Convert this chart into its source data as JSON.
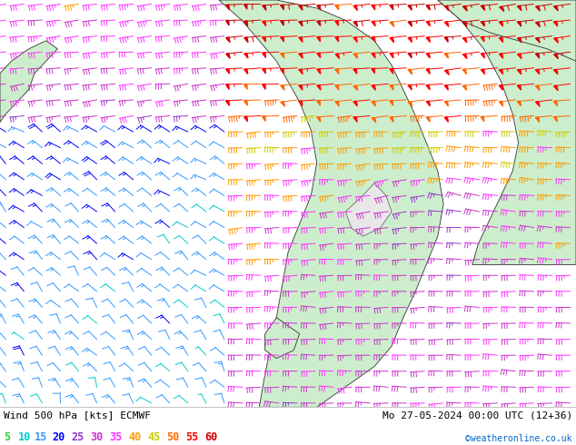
{
  "title_left": "Wind 500 hPa [kts] ECMWF",
  "title_right": "Mo 27-05-2024 00:00 UTC (12+36)",
  "copyright": "©weatheronline.co.uk",
  "legend_values": [
    5,
    10,
    15,
    20,
    25,
    30,
    35,
    40,
    45,
    50,
    55,
    60
  ],
  "legend_colors": [
    "#33cc33",
    "#00cccc",
    "#3399ff",
    "#0000ff",
    "#9933cc",
    "#cc33cc",
    "#ff33ff",
    "#ff9900",
    "#cccc00",
    "#ff6600",
    "#ff0000",
    "#cc0000"
  ],
  "sea_color": "#e8e8e8",
  "land_color": "#cceecc",
  "border_color": "#333333",
  "bottom_bar_color": "#ffffff",
  "figsize": [
    6.34,
    4.9
  ],
  "dpi": 100
}
